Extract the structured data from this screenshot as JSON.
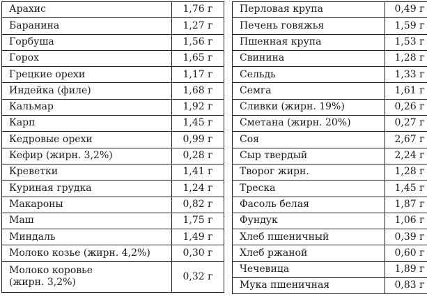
{
  "page": {
    "background_color": "#ffffff",
    "border_color": "#1f1f1f",
    "text_color": "#1b1b1b",
    "unit": "г"
  },
  "tables": [
    {
      "id": "left",
      "rows": [
        {
          "item": "Арахис",
          "value": "1,76 г"
        },
        {
          "item": "Баранина",
          "value": "1,27 г"
        },
        {
          "item": "Горбуша",
          "value": "1,56 г"
        },
        {
          "item": "Горох",
          "value": "1,65 г"
        },
        {
          "item": "Грецкие орехи",
          "value": "1,17 г"
        },
        {
          "item": "Индейка (филе)",
          "value": "1,68 г"
        },
        {
          "item": "Кальмар",
          "value": "1,92 г"
        },
        {
          "item": "Карп",
          "value": "1,45 г"
        },
        {
          "item": "Кедровые орехи",
          "value": "0,99 г"
        },
        {
          "item": "Кефир (жирн. 3,2%)",
          "value": "0,28 г"
        },
        {
          "item": "Креветки",
          "value": "1,41 г"
        },
        {
          "item": "Куриная грудка",
          "value": "1,24 г"
        },
        {
          "item": "Макароны",
          "value": "0,82 г"
        },
        {
          "item": "Маш",
          "value": "1,75 г"
        },
        {
          "item": "Миндаль",
          "value": "1,49 г"
        },
        {
          "item": "Молоко козье (жирн. 4,2%)",
          "value": "0,30 г"
        },
        {
          "item": "Молоко коровье\n(жирн. 3,2%)",
          "value": "0,32 г",
          "tall": true
        }
      ]
    },
    {
      "id": "right",
      "rows": [
        {
          "item": "Перловая крупа",
          "value": "0,49 г"
        },
        {
          "item": "Печень говяжья",
          "value": "1,59 г"
        },
        {
          "item": "Пшенная крупа",
          "value": "1,53 г"
        },
        {
          "item": "Свинина",
          "value": "1,28 г"
        },
        {
          "item": "Сельдь",
          "value": "1,33 г"
        },
        {
          "item": "Семга",
          "value": "1,61 г"
        },
        {
          "item": "Сливки (жирн. 19%)",
          "value": "0,26 г"
        },
        {
          "item": "Сметана (жирн. 20%)",
          "value": "0,27 г"
        },
        {
          "item": "Соя",
          "value": "2,67 г"
        },
        {
          "item": "Сыр твердый",
          "value": "2,24 г"
        },
        {
          "item": "Творог жирн.",
          "value": "1,28 г"
        },
        {
          "item": "Треска",
          "value": "1,45 г"
        },
        {
          "item": "Фасоль белая",
          "value": "1,87 г"
        },
        {
          "item": "Фундук",
          "value": "1,06 г"
        },
        {
          "item": "Хлеб пшеничный",
          "value": "0,39 г"
        },
        {
          "item": "Хлеб ржаной",
          "value": "0,60 г"
        },
        {
          "item": "Чечевица",
          "value": "1,89 г"
        },
        {
          "item": "Мука пшеничная",
          "value": "0,83 г"
        }
      ]
    }
  ]
}
